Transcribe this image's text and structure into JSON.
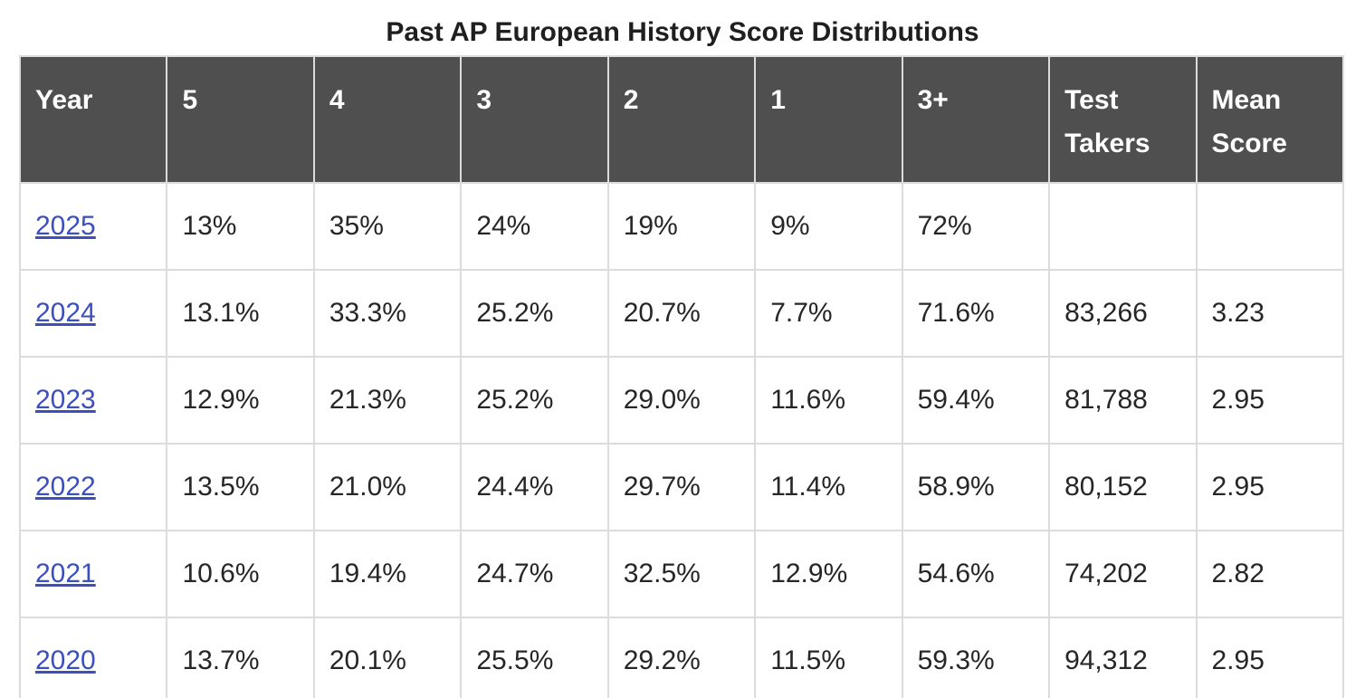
{
  "title": "Past AP European History Score Distributions",
  "colors": {
    "header_bg": "#4f4f4f",
    "header_text": "#ffffff",
    "link": "#3b4fbf",
    "border": "#dcdcdc"
  },
  "table": {
    "headers": [
      "Year",
      "5",
      "4",
      "3",
      "2",
      "1",
      "3+",
      "Test Takers",
      "Mean Score"
    ],
    "rows": [
      [
        "2025",
        "13%",
        "35%",
        "24%",
        "19%",
        "9%",
        "72%",
        "",
        ""
      ],
      [
        "2024",
        "13.1%",
        "33.3%",
        "25.2%",
        "20.7%",
        "7.7%",
        "71.6%",
        "83,266",
        "3.23"
      ],
      [
        "2023",
        "12.9%",
        "21.3%",
        "25.2%",
        "29.0%",
        "11.6%",
        "59.4%",
        "81,788",
        "2.95"
      ],
      [
        "2022",
        "13.5%",
        "21.0%",
        "24.4%",
        "29.7%",
        "11.4%",
        "58.9%",
        "80,152",
        "2.95"
      ],
      [
        "2021",
        "10.6%",
        "19.4%",
        "24.7%",
        "32.5%",
        "12.9%",
        "54.6%",
        "74,202",
        "2.82"
      ],
      [
        "2020",
        "13.7%",
        "20.1%",
        "25.5%",
        "29.2%",
        "11.5%",
        "59.3%",
        "94,312",
        "2.95"
      ]
    ]
  }
}
